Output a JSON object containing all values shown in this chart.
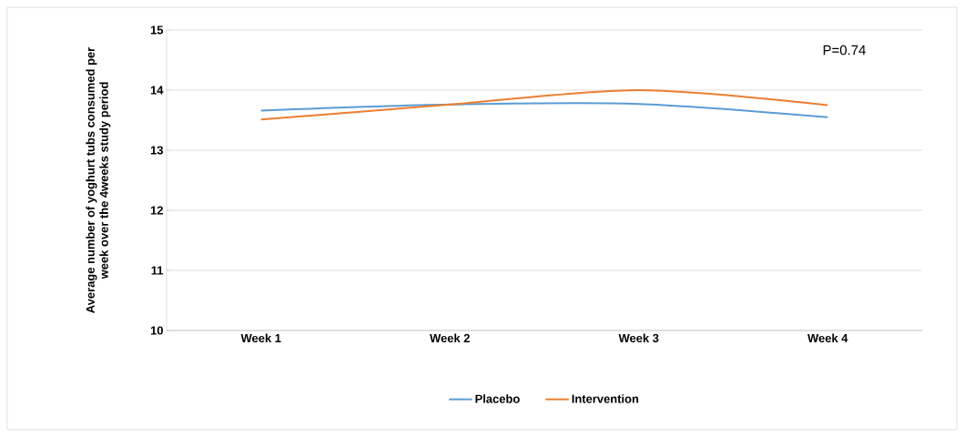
{
  "chart_data": {
    "type": "line",
    "ylabel": "Average number of yoghurt tubs consumed per week over the 4weeks study period",
    "categories": [
      "Week 1",
      "Week 2",
      "Week 3",
      "Week 4"
    ],
    "series": [
      {
        "name": "Placebo",
        "color": "#5b9bd5",
        "values": [
          13.66,
          13.76,
          13.77,
          13.55
        ]
      },
      {
        "name": "Intervention",
        "color": "#ed7d31",
        "values": [
          13.51,
          13.76,
          14.0,
          13.75
        ]
      }
    ],
    "ylim": [
      10,
      15
    ],
    "yticks": [
      10,
      11,
      12,
      13,
      14,
      15
    ],
    "grid": "y",
    "legend": "bottom",
    "marker": "none",
    "line_style": "solid",
    "annotations": [
      "P=0.74"
    ]
  }
}
